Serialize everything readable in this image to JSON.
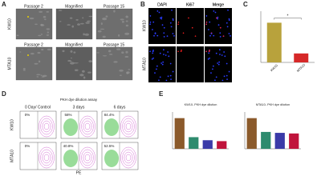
{
  "panels": {
    "A": {
      "label": "A",
      "columns": [
        "Passage 2",
        "Magnified",
        "Passage 15"
      ],
      "rows": [
        "KW10",
        "MTA10"
      ]
    },
    "B": {
      "label": "B",
      "columns": [
        "DAPI",
        "Ki67",
        "Merge"
      ],
      "rows": [
        "KW10",
        "MTA10"
      ]
    },
    "C": {
      "label": "C",
      "significance": "*",
      "categories": [
        "KW10",
        "MTA10"
      ],
      "values": [
        62,
        14
      ],
      "colors": [
        "#b8a23c",
        "#d62828"
      ],
      "ylim": [
        0,
        80
      ]
    },
    "D": {
      "label": "D",
      "title": "PKH dye dilution assay",
      "columns": [
        "0 Day/ Control",
        "3 days",
        "6 days"
      ],
      "rows": [
        "KW10",
        "MTA10"
      ],
      "percentages": [
        [
          "0%",
          "58%",
          "84.4%"
        ],
        [
          "0%",
          "40.8%",
          "52.5%"
        ]
      ],
      "x_label": "PE"
    },
    "E": {
      "label": "E",
      "charts": [
        {
          "title": "KW10- PKH dye dilution",
          "values": [
            100,
            38,
            28,
            25
          ]
        },
        {
          "title": "MTA10- PKH dye dilution",
          "values": [
            100,
            55,
            52,
            50
          ]
        }
      ],
      "colors": [
        "#8b5a2b",
        "#2e8b6e",
        "#3a3aa8",
        "#c0143c"
      ],
      "ylim": [
        0,
        120
      ]
    }
  }
}
